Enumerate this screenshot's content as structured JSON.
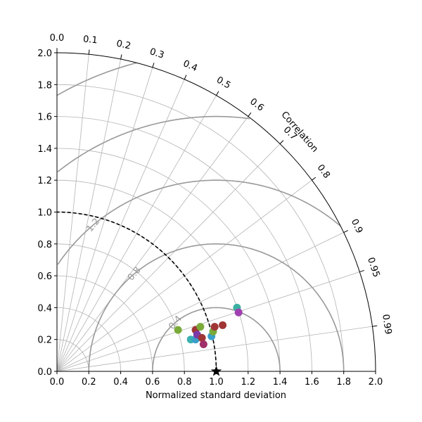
{
  "chart_data": {
    "type": "scatter",
    "subtype": "taylor_diagram",
    "xlabel": "Normalized standard deviation",
    "arc_label": "Correlation",
    "std_lim": [
      0,
      2.0
    ],
    "std_ticks": [
      "0.0",
      "0.2",
      "0.4",
      "0.6",
      "0.8",
      "1.0",
      "1.2",
      "1.4",
      "1.6",
      "1.8",
      "2.0"
    ],
    "correlation_ticks": [
      "0.0",
      "0.1",
      "0.2",
      "0.3",
      "0.4",
      "0.5",
      "0.6",
      "0.7",
      "0.8",
      "0.9",
      "0.95",
      "0.99"
    ],
    "rms_contours": [
      "0.4",
      "0.8",
      "1.2",
      "1.6",
      "2.0"
    ],
    "reference": {
      "std": 1.0,
      "corr": 1.0,
      "marker": "star"
    },
    "grid": true,
    "points": [
      {
        "x": 0.76,
        "y": 0.26,
        "color": "#7aab3a"
      },
      {
        "x": 0.84,
        "y": 0.2,
        "color": "#3bb0b0"
      },
      {
        "x": 0.87,
        "y": 0.2,
        "color": "#3b9fc8"
      },
      {
        "x": 0.87,
        "y": 0.26,
        "color": "#a03535"
      },
      {
        "x": 0.88,
        "y": 0.23,
        "color": "#7a3aa8"
      },
      {
        "x": 0.9,
        "y": 0.28,
        "color": "#7aab3a"
      },
      {
        "x": 0.91,
        "y": 0.21,
        "color": "#a03535"
      },
      {
        "x": 0.92,
        "y": 0.17,
        "color": "#a0306a"
      },
      {
        "x": 0.97,
        "y": 0.22,
        "color": "#3b9fc8"
      },
      {
        "x": 0.98,
        "y": 0.25,
        "color": "#7aab3a"
      },
      {
        "x": 0.99,
        "y": 0.28,
        "color": "#a03535"
      },
      {
        "x": 1.04,
        "y": 0.29,
        "color": "#a03535"
      },
      {
        "x": 1.13,
        "y": 0.4,
        "color": "#3bb0a0"
      },
      {
        "x": 1.14,
        "y": 0.37,
        "color": "#a040b0"
      }
    ]
  }
}
